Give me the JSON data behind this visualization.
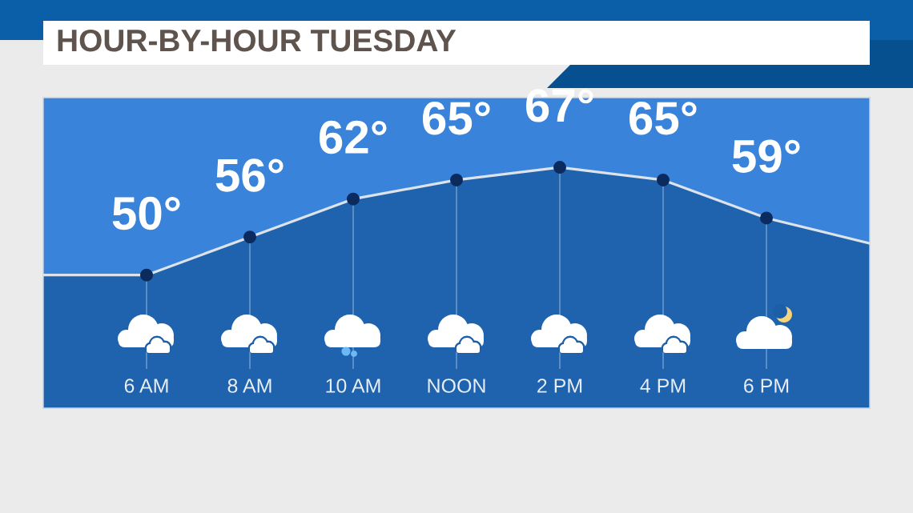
{
  "chart_data": {
    "type": "area",
    "title": "HOUR-BY-HOUR TUESDAY",
    "categories": [
      null,
      "6 AM",
      "8 AM",
      "10 AM",
      "NOON",
      "2 PM",
      "4 PM",
      "6 PM",
      null
    ],
    "series": [
      {
        "color": "#1f62ad",
        "values": [
          50,
          50,
          56,
          62,
          65,
          67,
          65,
          59,
          55
        ],
        "value_labels": [
          null,
          "50°",
          "56°",
          "62°",
          "65°",
          "67°",
          "65°",
          "59°",
          null
        ]
      }
    ],
    "ylim": [
      29,
      78
    ],
    "marker": "circle",
    "grid": "x",
    "tick_labels": "x"
  }
}
